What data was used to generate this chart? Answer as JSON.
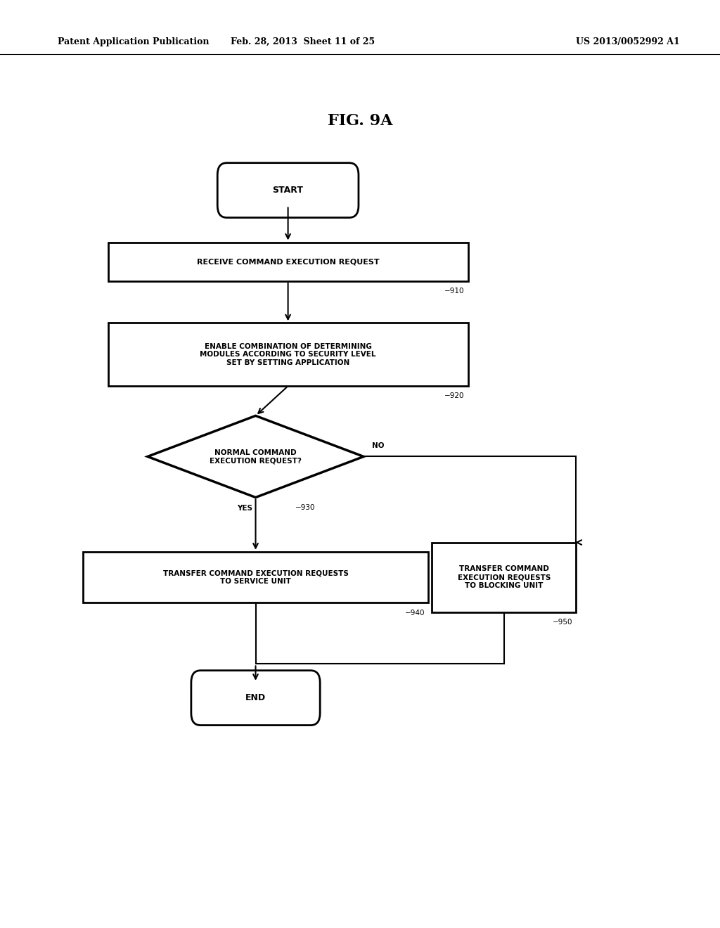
{
  "bg_color": "#ffffff",
  "title": "FIG. 9A",
  "header_left": "Patent Application Publication",
  "header_mid": "Feb. 28, 2013  Sheet 11 of 25",
  "header_right": "US 2013/0052992 A1",
  "start_label": "START",
  "end_label": "END",
  "box910_label": "RECEIVE COMMAND EXECUTION REQUEST",
  "box910_tag": "910",
  "box920_label": "ENABLE COMBINATION OF DETERMINING\nMODULES ACCORDING TO SECURITY LEVEL\nSET BY SETTING APPLICATION",
  "box920_tag": "920",
  "diamond930_label": "NORMAL COMMAND\nEXECUTION REQUEST?",
  "diamond930_tag": "930",
  "box940_label": "TRANSFER COMMAND EXECUTION REQUESTS\nTO SERVICE UNIT",
  "box940_tag": "940",
  "box950_label": "TRANSFER COMMAND\nEXECUTION REQUESTS\nTO BLOCKING UNIT",
  "box950_tag": "950",
  "yes_label": "YES",
  "no_label": "NO"
}
